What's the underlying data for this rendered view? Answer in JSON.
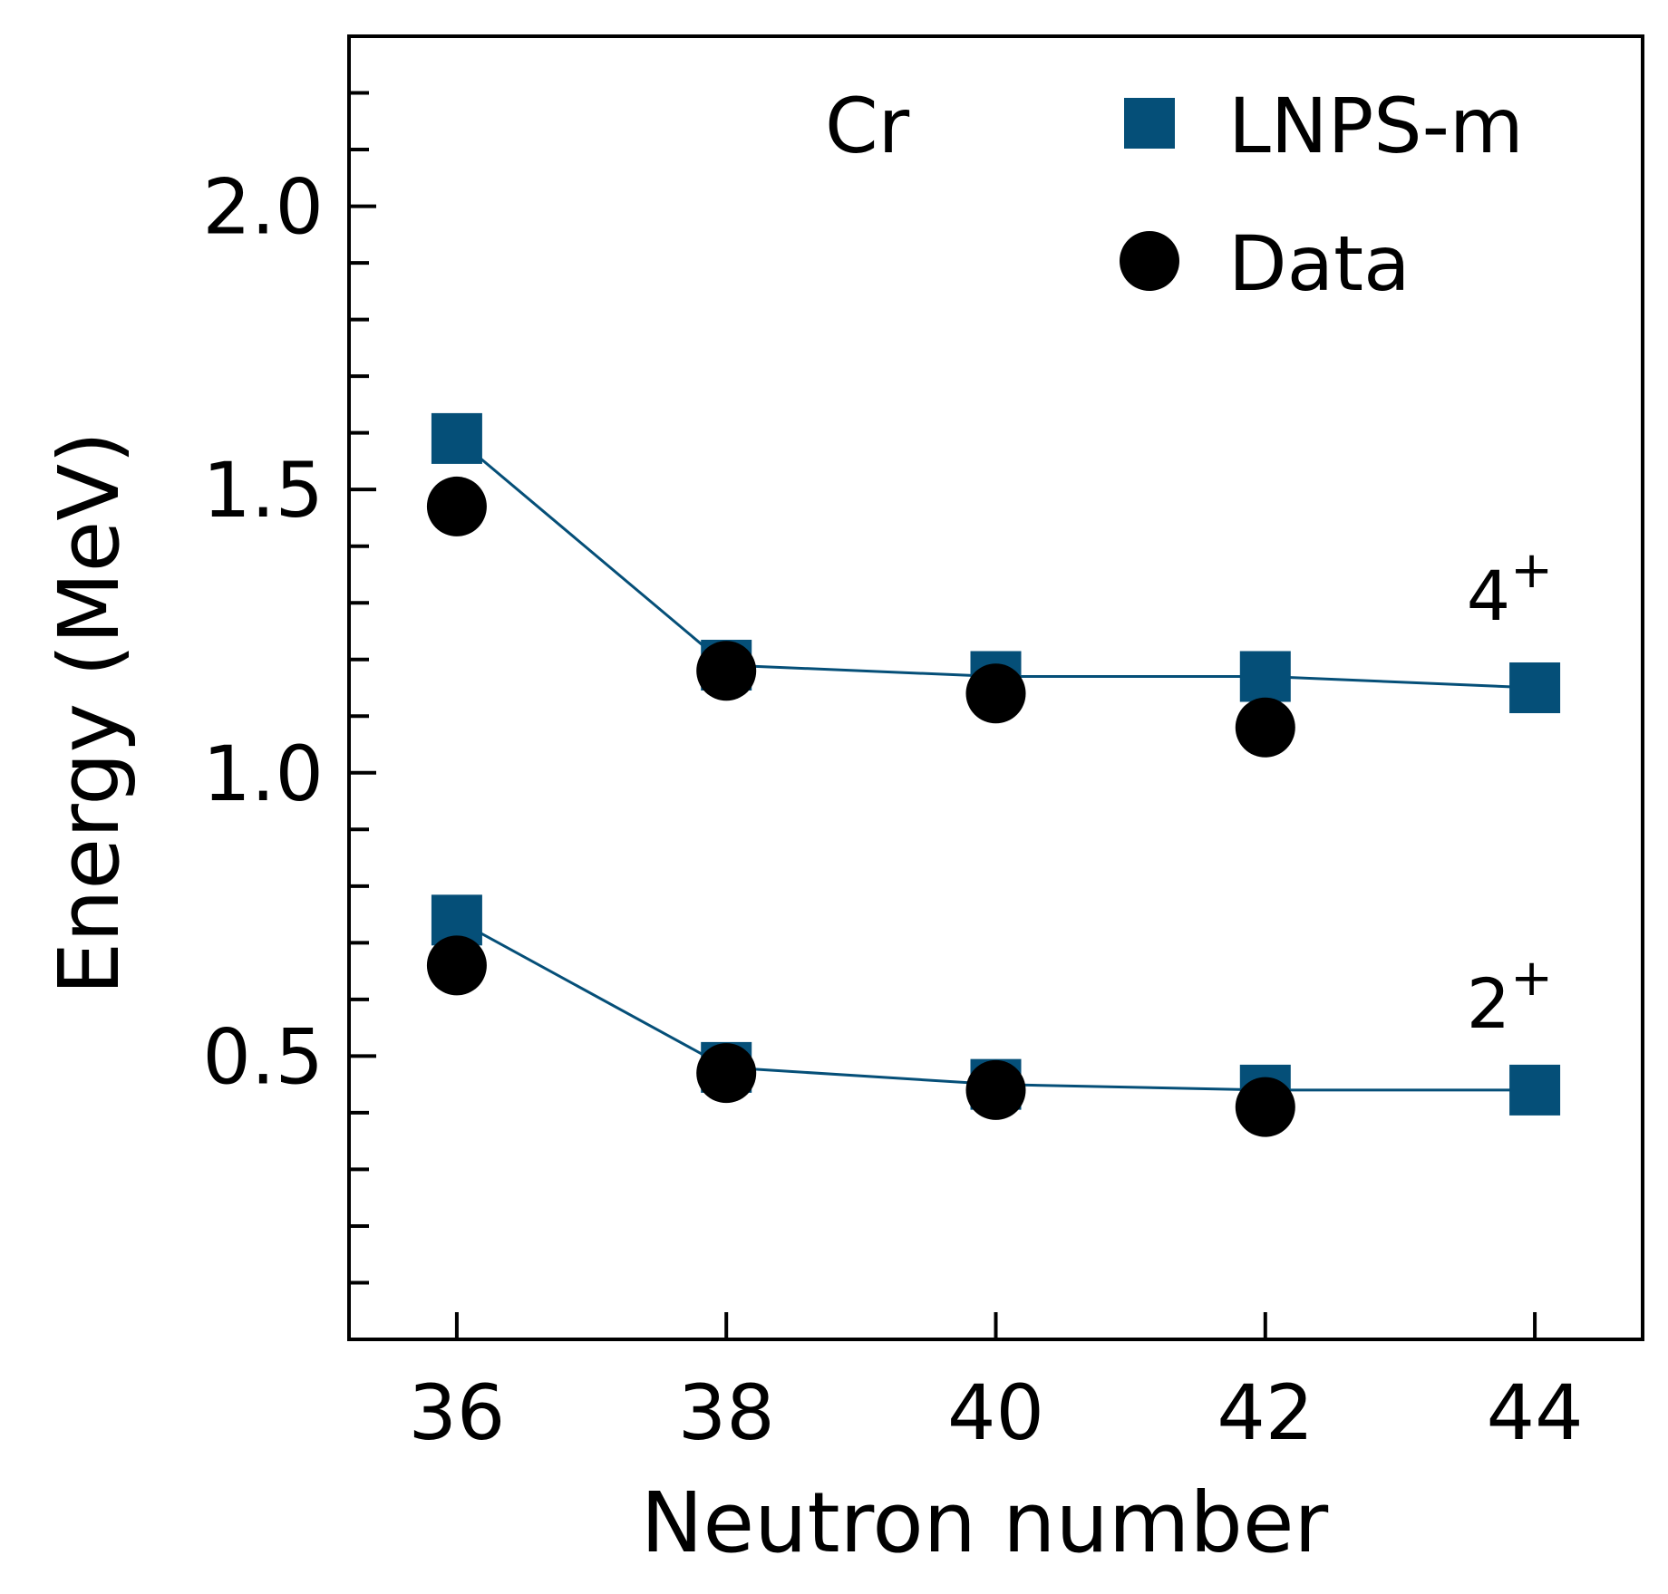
{
  "chart_data": {
    "type": "scatter",
    "title": "",
    "xlabel": "Neutron number",
    "ylabel": "Energy (MeV)",
    "element_label": "Cr",
    "xlim": [
      35.2,
      44.8
    ],
    "ylim": [
      0.0,
      2.3
    ],
    "x_ticks": [
      36,
      38,
      40,
      42,
      44
    ],
    "x_tick_labels": [
      "36",
      "38",
      "40",
      "42",
      "44"
    ],
    "y_ticks_major": [
      0.5,
      1.0,
      1.5,
      2.0
    ],
    "y_tick_labels": [
      "0.5",
      "1.0",
      "1.5",
      "2.0"
    ],
    "y_minor_step": 0.1,
    "grid": false,
    "legend_position": "top-right",
    "series": [
      {
        "name": "LNPS-m",
        "state": "4+",
        "marker": "square",
        "connected": true,
        "color": "#054f78",
        "x": [
          36,
          38,
          40,
          42,
          44
        ],
        "values": [
          1.59,
          1.19,
          1.17,
          1.17,
          1.15
        ]
      },
      {
        "name": "Data",
        "state": "4+",
        "marker": "circle",
        "connected": false,
        "color": "#000000",
        "x": [
          36,
          38,
          40,
          42
        ],
        "values": [
          1.47,
          1.18,
          1.14,
          1.08
        ]
      },
      {
        "name": "LNPS-m",
        "state": "2+",
        "marker": "square",
        "connected": true,
        "color": "#054f78",
        "x": [
          36,
          38,
          40,
          42,
          44
        ],
        "values": [
          0.74,
          0.48,
          0.45,
          0.44,
          0.44
        ]
      },
      {
        "name": "Data",
        "state": "2+",
        "marker": "circle",
        "connected": false,
        "color": "#000000",
        "x": [
          36,
          38,
          40,
          42
        ],
        "values": [
          0.66,
          0.47,
          0.44,
          0.41
        ]
      }
    ],
    "legend": [
      {
        "label": "LNPS-m",
        "marker": "square",
        "color": "#054f78"
      },
      {
        "label": "Data",
        "marker": "circle",
        "color": "#000000"
      }
    ],
    "annotations": [
      {
        "base": "4",
        "sup": "+",
        "x": 44,
        "y": 1.27
      },
      {
        "base": "2",
        "sup": "+",
        "x": 44,
        "y": 0.55
      }
    ]
  }
}
